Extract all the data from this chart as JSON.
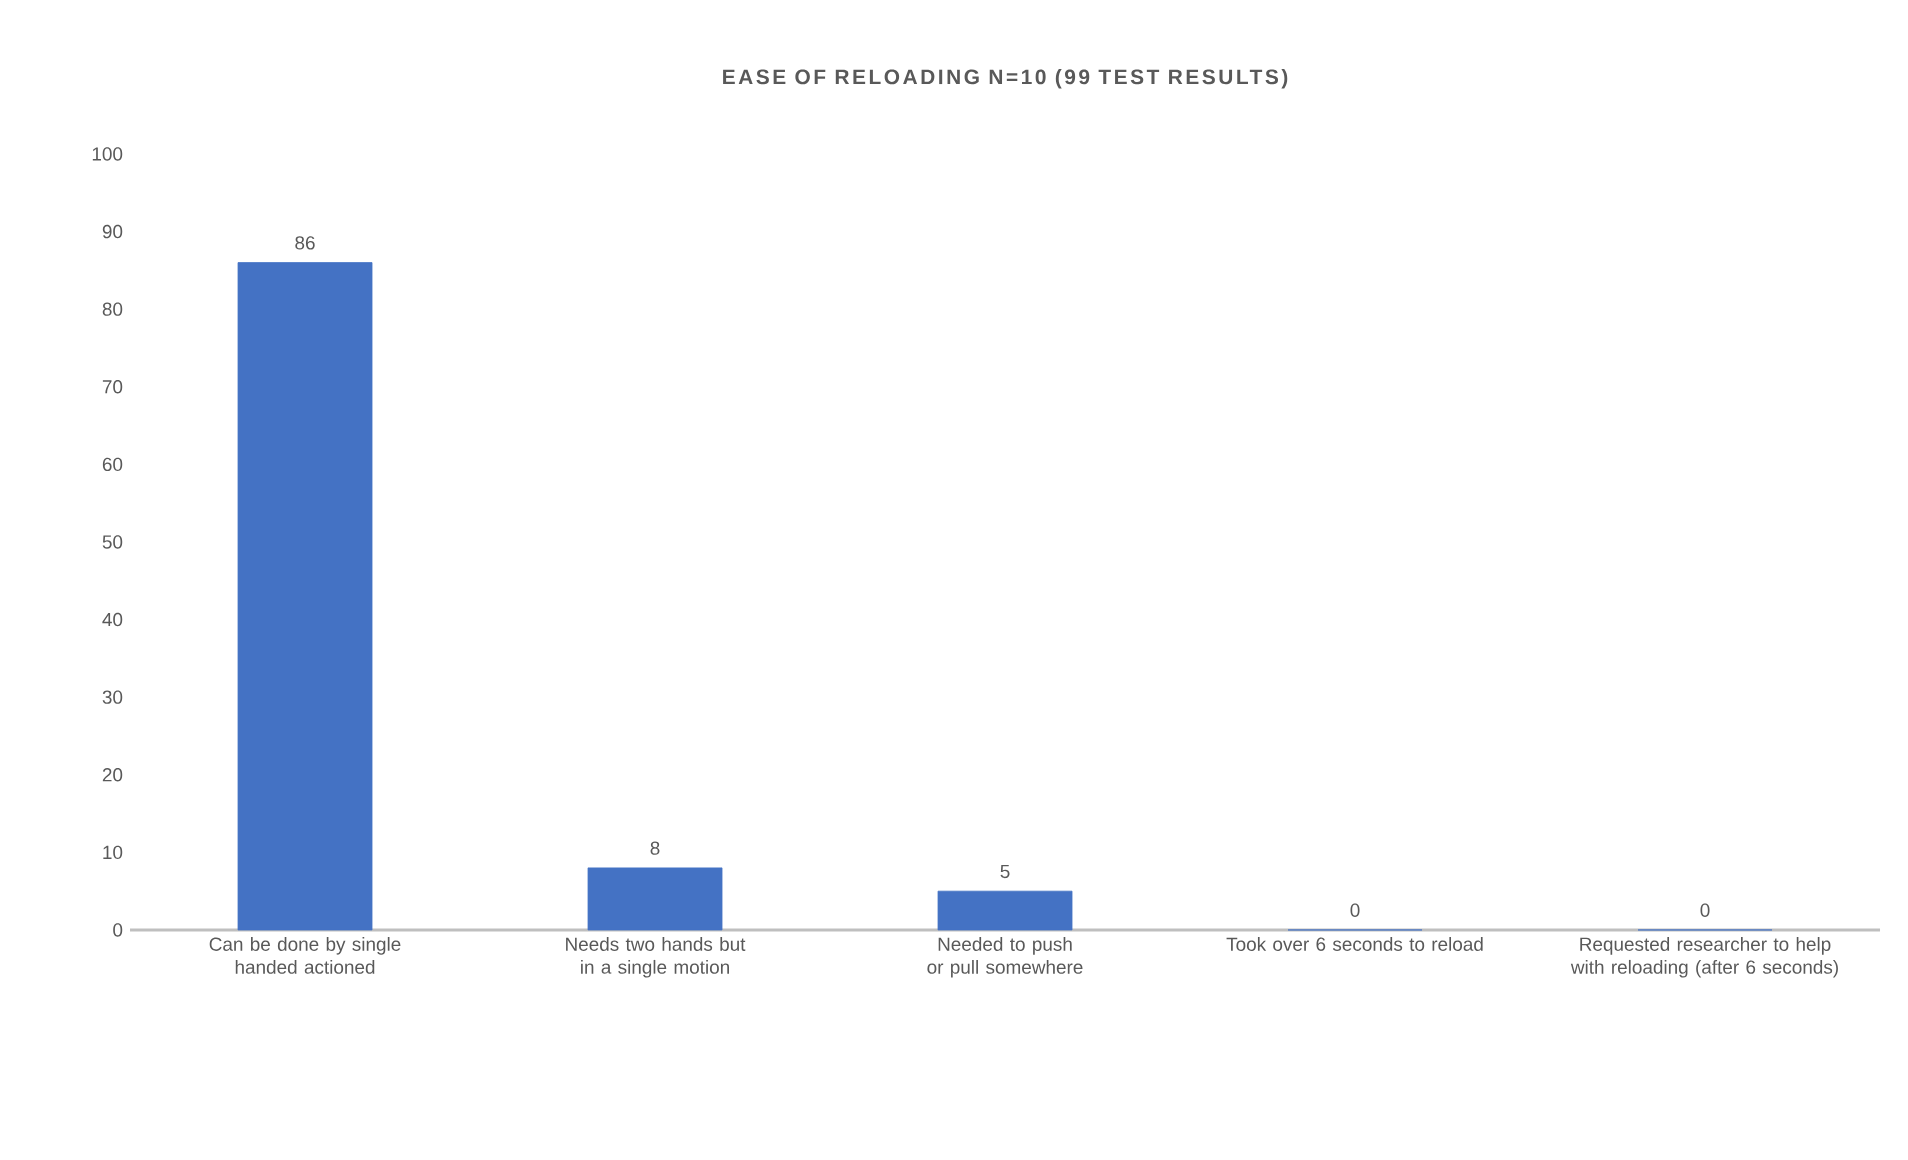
{
  "chart_data": {
    "type": "bar",
    "title": "EASE OF RELOADING N=10 (99 TEST RESULTS)",
    "categories": [
      "Can be done by single handed actioned",
      "Needs two hands but in a single motion",
      "Needed to push or pull somewhere",
      "Took over 6 seconds to reload",
      "Requested researcher to help with reloading (after 6 seconds)"
    ],
    "values": [
      86,
      8,
      5,
      0,
      0
    ],
    "color": "#4472c4",
    "ylim": [
      0,
      100
    ],
    "yticks": [
      0,
      10,
      20,
      30,
      40,
      50,
      60,
      70,
      80,
      90,
      100
    ],
    "data_labels": true
  }
}
